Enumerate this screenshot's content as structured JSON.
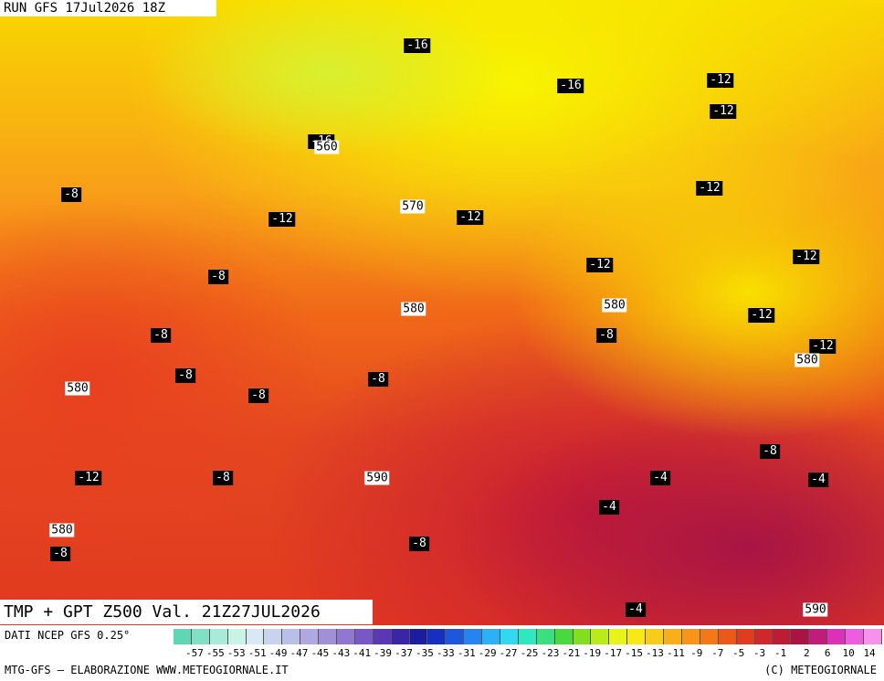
{
  "header": {
    "run": "RUN GFS 17Jul2026 18Z"
  },
  "map": {
    "title": "TMP + GPT Z500 Val. 21Z27JUL2026",
    "temperature_labels": [
      "-16",
      "-16",
      "-12",
      "-12",
      "-16",
      "-8",
      "-12",
      "-12",
      "-12",
      "-12",
      "-12",
      "-8",
      "-12",
      "-12",
      "-8",
      "-8",
      "-8",
      "-8",
      "-8",
      "-12",
      "-8",
      "-8",
      "-4",
      "-4",
      "-4",
      "-8",
      "-8",
      "-4"
    ],
    "height_labels": [
      "560",
      "570",
      "580",
      "580",
      "580",
      "580",
      "590",
      "580",
      "590"
    ]
  },
  "colorbar": {
    "colors": [
      "#5fd6b4",
      "#7fe0c6",
      "#a6ecd8",
      "#c8f4e6",
      "#d8e8f4",
      "#c8d4ee",
      "#b8c0e8",
      "#b0a8e0",
      "#a090d8",
      "#9078d0",
      "#7858c4",
      "#5a38b4",
      "#3a24a8",
      "#1c1ca0",
      "#1430c0",
      "#1c58dc",
      "#2484f0",
      "#2cb0f8",
      "#30d8f0",
      "#30e8c0",
      "#38e080",
      "#48d840",
      "#80e020",
      "#b8ec18",
      "#e8f418",
      "#f8e818",
      "#f8cc18",
      "#f8b018",
      "#f89418",
      "#f47818",
      "#ec5818",
      "#e03c20",
      "#d02828",
      "#bc1c34",
      "#a81444",
      "#c01c7c",
      "#dc30b8",
      "#ee5ce0",
      "#f890ec"
    ],
    "ticks": [
      "-57",
      "-55",
      "-53",
      "-51",
      "-49",
      "-47",
      "-45",
      "-43",
      "-41",
      "-39",
      "-37",
      "-35",
      "-33",
      "-31",
      "-29",
      "-27",
      "-25",
      "-23",
      "-21",
      "-19",
      "-17",
      "-15",
      "-13",
      "-11",
      "-9",
      "-7",
      "-5",
      "-3",
      "-1",
      "2",
      "6",
      "10",
      "14"
    ]
  },
  "footer": {
    "data_source": "DATI NCEP GFS 0.25°",
    "credits": "MTG-GFS — ELABORAZIONE WWW.METEOGIORNALE.IT",
    "copyright": "(C) METEOGIORNALE"
  }
}
